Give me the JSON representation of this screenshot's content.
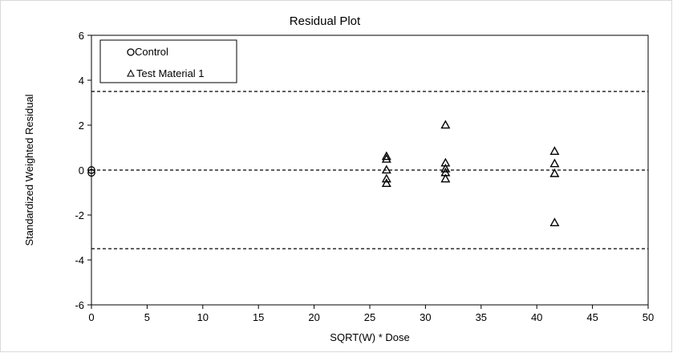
{
  "chart_data": {
    "type": "scatter",
    "title": "Residual Plot",
    "xlabel": "SQRT(W) * Dose",
    "ylabel": "Standardized Weighted Residual",
    "xlim": [
      0,
      50
    ],
    "ylim": [
      -6,
      6
    ],
    "xticks": [
      0,
      5,
      10,
      15,
      20,
      25,
      30,
      35,
      40,
      45,
      50
    ],
    "yticks": [
      -6,
      -4,
      -2,
      0,
      2,
      4,
      6
    ],
    "grid": false,
    "legend_position": "top-left",
    "reference_lines": [
      {
        "y": 3.5,
        "style": "dashed"
      },
      {
        "y": 0,
        "style": "dashed"
      },
      {
        "y": -3.5,
        "style": "dashed"
      }
    ],
    "series": [
      {
        "name": "Control",
        "marker": "circle",
        "color": "#000000",
        "points": [
          {
            "x": 0,
            "y": 0.0
          },
          {
            "x": 0,
            "y": -0.12
          }
        ]
      },
      {
        "name": "Test Material 1",
        "marker": "triangle",
        "color": "#000000",
        "points": [
          {
            "x": 26.5,
            "y": 0.62
          },
          {
            "x": 26.5,
            "y": 0.5
          },
          {
            "x": 26.5,
            "y": 0.02
          },
          {
            "x": 26.5,
            "y": -0.38
          },
          {
            "x": 26.5,
            "y": -0.58
          },
          {
            "x": 31.8,
            "y": 2.02
          },
          {
            "x": 31.8,
            "y": 0.33
          },
          {
            "x": 31.8,
            "y": 0.07
          },
          {
            "x": 31.8,
            "y": -0.1
          },
          {
            "x": 31.8,
            "y": -0.38
          },
          {
            "x": 41.6,
            "y": 0.85
          },
          {
            "x": 41.6,
            "y": 0.3
          },
          {
            "x": 41.6,
            "y": -0.14
          },
          {
            "x": 41.6,
            "y": -2.33
          }
        ]
      }
    ]
  }
}
